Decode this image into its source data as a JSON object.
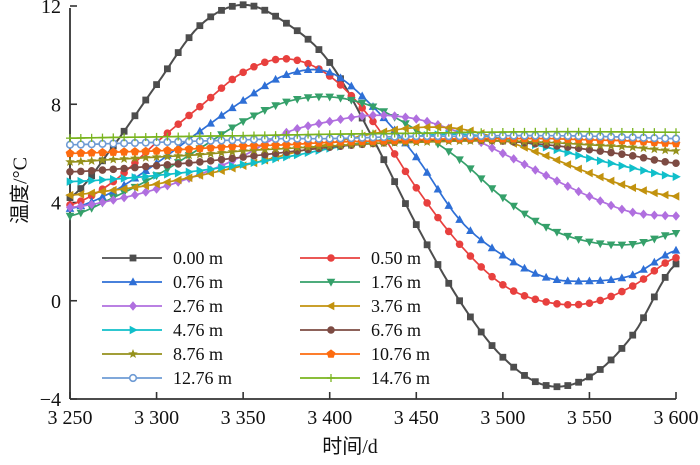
{
  "chart_data": {
    "type": "line",
    "title": "",
    "xlabel": "时间/d",
    "ylabel": "温度/°C",
    "xlim": [
      3250,
      3600
    ],
    "ylim": [
      -4,
      12
    ],
    "grid": false,
    "legend_position": "inside bottom-left, 2 columns, no frame",
    "x_ticks": [
      {
        "value": 3250,
        "label": "3 250"
      },
      {
        "value": 3300,
        "label": "3 300"
      },
      {
        "value": 3350,
        "label": "3 350"
      },
      {
        "value": 3400,
        "label": "3 400"
      },
      {
        "value": 3450,
        "label": "3 450"
      },
      {
        "value": 3500,
        "label": "3 500"
      },
      {
        "value": 3550,
        "label": "3 550"
      },
      {
        "value": 3600,
        "label": "3 600"
      }
    ],
    "y_ticks": [
      {
        "value": 12,
        "label": "12"
      },
      {
        "value": 8,
        "label": "8"
      },
      {
        "value": 4,
        "label": "4"
      },
      {
        "value": 0,
        "label": "0"
      },
      {
        "value": -4,
        "label": "−4"
      }
    ],
    "x_keypoints": [
      3250,
      3275,
      3300,
      3325,
      3350,
      3375,
      3400,
      3425,
      3450,
      3475,
      3500,
      3525,
      3550,
      3575,
      3600
    ],
    "series": [
      {
        "label": "0.00 m",
        "depth_m": 0.0,
        "color": "#4d4d4d",
        "marker": "square",
        "values": [
          4.2,
          6.3,
          8.8,
          11.2,
          12.05,
          11.3,
          9.7,
          6.6,
          3.1,
          0.0,
          -2.3,
          -3.45,
          -3.1,
          -1.4,
          1.5
        ]
      },
      {
        "label": "0.50 m",
        "depth_m": 0.5,
        "color": "#e8403e",
        "marker": "circle",
        "values": [
          3.9,
          4.85,
          6.45,
          7.9,
          9.3,
          9.85,
          9.15,
          7.3,
          4.6,
          2.3,
          0.65,
          -0.05,
          -0.1,
          0.6,
          1.75
        ]
      },
      {
        "label": "0.76 m",
        "depth_m": 0.76,
        "color": "#2e6fd6",
        "marker": "triangle-up",
        "values": [
          3.75,
          4.45,
          5.6,
          6.9,
          8.15,
          9.2,
          9.3,
          7.9,
          5.85,
          3.3,
          1.85,
          0.95,
          0.8,
          1.05,
          2.05
        ]
      },
      {
        "label": "1.76 m",
        "depth_m": 1.76,
        "color": "#35a06a",
        "marker": "triangle-down",
        "values": [
          3.45,
          4.2,
          5.1,
          6.2,
          7.3,
          8.1,
          8.3,
          7.9,
          6.95,
          5.75,
          4.2,
          3.0,
          2.4,
          2.3,
          2.75
        ]
      },
      {
        "label": "2.76 m",
        "depth_m": 2.76,
        "color": "#b06fdf",
        "marker": "diamond",
        "values": [
          3.8,
          4.1,
          4.55,
          5.15,
          5.9,
          6.85,
          7.3,
          7.55,
          7.4,
          6.85,
          6.0,
          5.1,
          4.25,
          3.6,
          3.45
        ]
      },
      {
        "label": "3.76 m",
        "depth_m": 3.76,
        "color": "#c2920e",
        "marker": "triangle-left",
        "values": [
          4.3,
          4.5,
          4.75,
          5.1,
          5.5,
          5.95,
          6.4,
          6.8,
          7.05,
          7.0,
          6.55,
          5.9,
          5.2,
          4.6,
          4.25
        ]
      },
      {
        "label": "4.76 m",
        "depth_m": 4.76,
        "color": "#10bfca",
        "marker": "triangle-right",
        "values": [
          4.85,
          4.95,
          5.1,
          5.3,
          5.55,
          5.85,
          6.2,
          6.5,
          6.7,
          6.78,
          6.6,
          6.25,
          5.8,
          5.4,
          5.05
        ]
      },
      {
        "label": "6.76 m",
        "depth_m": 6.76,
        "color": "#7d4b43",
        "marker": "circle",
        "values": [
          5.25,
          5.35,
          5.5,
          5.65,
          5.85,
          6.05,
          6.25,
          6.4,
          6.5,
          6.55,
          6.5,
          6.35,
          6.15,
          5.9,
          5.6
        ]
      },
      {
        "label": "8.76 m",
        "depth_m": 8.76,
        "color": "#95911c",
        "marker": "star",
        "values": [
          5.65,
          5.75,
          5.85,
          5.95,
          6.1,
          6.2,
          6.3,
          6.4,
          6.45,
          6.5,
          6.5,
          6.45,
          6.35,
          6.25,
          6.1
        ]
      },
      {
        "label": "10.76 m",
        "depth_m": 10.76,
        "color": "#fd6b0f",
        "marker": "pentagon",
        "values": [
          6.0,
          6.05,
          6.1,
          6.2,
          6.3,
          6.35,
          6.45,
          6.5,
          6.55,
          6.6,
          6.6,
          6.6,
          6.55,
          6.5,
          6.4
        ]
      },
      {
        "label": "12.76 m",
        "depth_m": 12.76,
        "color": "#6e9bd4",
        "marker": "circle-open",
        "values": [
          6.35,
          6.4,
          6.45,
          6.5,
          6.55,
          6.6,
          6.6,
          6.65,
          6.7,
          6.7,
          6.72,
          6.72,
          6.7,
          6.65,
          6.6
        ]
      },
      {
        "label": "14.76 m",
        "depth_m": 14.76,
        "color": "#79b41e",
        "marker": "plus",
        "values": [
          6.62,
          6.65,
          6.67,
          6.7,
          6.72,
          6.75,
          6.78,
          6.8,
          6.82,
          6.85,
          6.87,
          6.88,
          6.88,
          6.87,
          6.86
        ]
      }
    ],
    "axis_color": "#333333"
  }
}
